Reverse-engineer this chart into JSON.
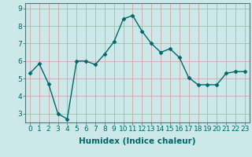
{
  "x": [
    0,
    1,
    2,
    3,
    4,
    5,
    6,
    7,
    8,
    9,
    10,
    11,
    12,
    13,
    14,
    15,
    16,
    17,
    18,
    19,
    20,
    21,
    22,
    23
  ],
  "y": [
    5.3,
    5.85,
    4.7,
    3.0,
    2.7,
    6.0,
    6.0,
    5.8,
    6.4,
    7.1,
    8.4,
    8.6,
    7.7,
    7.0,
    6.5,
    6.7,
    6.2,
    5.05,
    4.65,
    4.65,
    4.65,
    5.3,
    5.4,
    5.4
  ],
  "line_color": "#006868",
  "marker": "D",
  "marker_size": 2.5,
  "bg_color": "#cce8e8",
  "grid_color_major": "#c8b8b8",
  "grid_color_minor": "#dde8e8",
  "xlabel": "Humidex (Indice chaleur)",
  "ylim": [
    2.5,
    9.3
  ],
  "xlim": [
    -0.5,
    23.5
  ],
  "yticks": [
    3,
    4,
    5,
    6,
    7,
    8,
    9
  ],
  "xticks": [
    0,
    1,
    2,
    3,
    4,
    5,
    6,
    7,
    8,
    9,
    10,
    11,
    12,
    13,
    14,
    15,
    16,
    17,
    18,
    19,
    20,
    21,
    22,
    23
  ],
  "xlabel_fontsize": 7.5,
  "tick_fontsize": 6.5,
  "line_width": 1.0
}
